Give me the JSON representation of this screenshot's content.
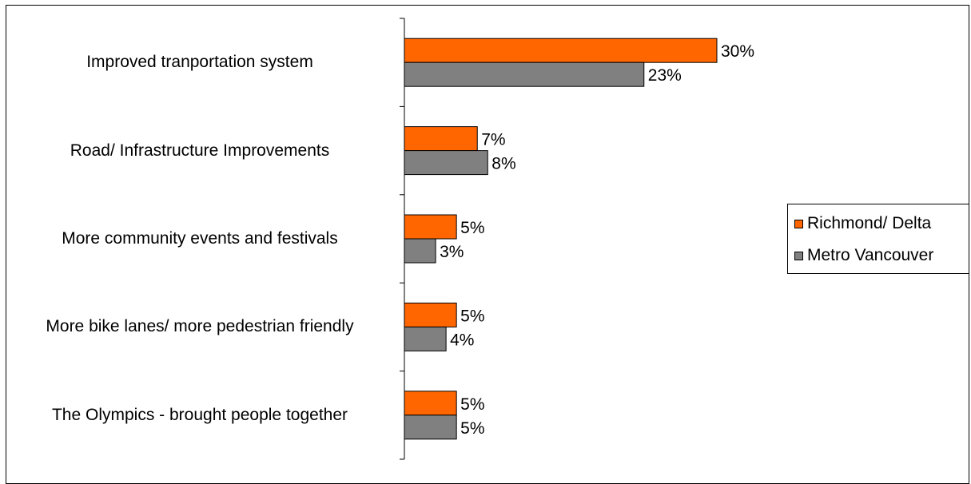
{
  "chart_data": {
    "type": "bar",
    "orientation": "horizontal",
    "categories": [
      "Improved tranportation system",
      "Road/ Infrastructure Improvements",
      "More community events and festivals",
      "More bike lanes/ more pedestrian friendly",
      "The Olympics - brought people together"
    ],
    "series": [
      {
        "name": "Richmond/ Delta",
        "values": [
          30,
          7,
          5,
          5,
          5
        ],
        "labels": [
          "30%",
          "7%",
          "5%",
          "5%",
          "5%"
        ],
        "color": "#ff6600"
      },
      {
        "name": "Metro Vancouver",
        "values": [
          23,
          8,
          3,
          4,
          5
        ],
        "labels": [
          "23%",
          "8%",
          "3%",
          "4%",
          "5%"
        ],
        "color": "#808080"
      }
    ],
    "xlim": [
      0,
      30
    ],
    "legend": "right",
    "grid": false
  }
}
